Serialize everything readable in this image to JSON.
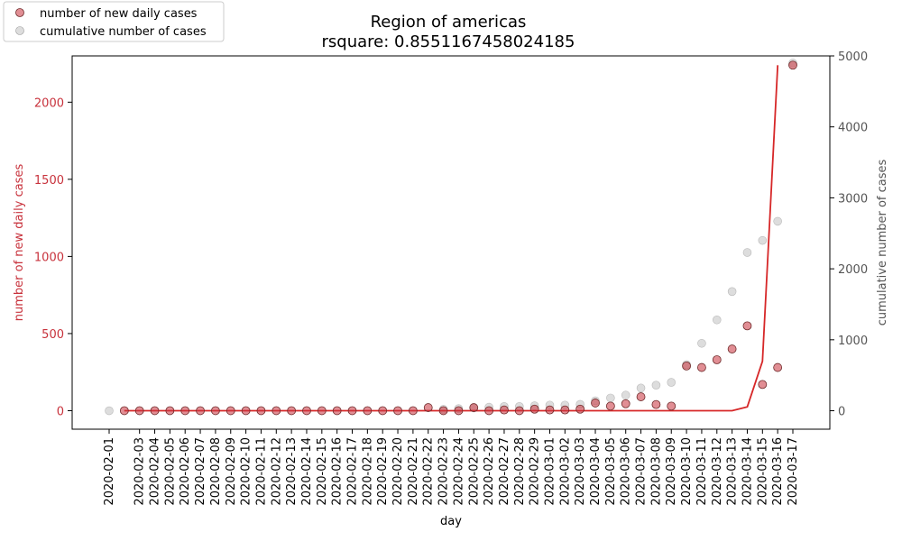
{
  "chart_data": {
    "type": "scatter",
    "title": "Region of americas",
    "subtitle": "rsquare: 0.8551167458024185",
    "xlabel": "day",
    "ylabel_left": "number of new daily cases",
    "ylabel_right": "cumulative number of cases",
    "ylim_left": [
      -120,
      2300
    ],
    "ylim_right": [
      -260,
      5000
    ],
    "yticks_left": [
      0,
      500,
      1000,
      1500,
      2000
    ],
    "yticks_right": [
      0,
      1000,
      2000,
      3000,
      4000,
      5000
    ],
    "legend_position": "top-left",
    "colors": {
      "daily": "#c8323c",
      "cumulative": "#b4b4b4",
      "fit_line": "#d62728",
      "left_axis_text": "#c8323c",
      "right_axis_text": "#555555"
    },
    "x": [
      "2020-02-01",
      "2020-02-02",
      "2020-02-03",
      "2020-02-04",
      "2020-02-05",
      "2020-02-06",
      "2020-02-07",
      "2020-02-08",
      "2020-02-09",
      "2020-02-10",
      "2020-02-11",
      "2020-02-12",
      "2020-02-13",
      "2020-02-14",
      "2020-02-15",
      "2020-02-16",
      "2020-02-17",
      "2020-02-18",
      "2020-02-19",
      "2020-02-20",
      "2020-02-21",
      "2020-02-22",
      "2020-02-23",
      "2020-02-24",
      "2020-02-25",
      "2020-02-26",
      "2020-02-27",
      "2020-02-28",
      "2020-02-29",
      "2020-03-01",
      "2020-03-02",
      "2020-03-03",
      "2020-03-04",
      "2020-03-05",
      "2020-03-06",
      "2020-03-07",
      "2020-03-08",
      "2020-03-09",
      "2020-03-10",
      "2020-03-11",
      "2020-03-12",
      "2020-03-13",
      "2020-03-14",
      "2020-03-15",
      "2020-03-16",
      "2020-03-17"
    ],
    "x_tick_labels": [
      "2020-02-01",
      "2020-02-03",
      "2020-02-04",
      "2020-02-05",
      "2020-02-06",
      "2020-02-07",
      "2020-02-08",
      "2020-02-09",
      "2020-02-10",
      "2020-02-11",
      "2020-02-12",
      "2020-02-13",
      "2020-02-14",
      "2020-02-15",
      "2020-02-16",
      "2020-02-17",
      "2020-02-18",
      "2020-02-19",
      "2020-02-20",
      "2020-02-21",
      "2020-02-22",
      "2020-02-23",
      "2020-02-24",
      "2020-02-25",
      "2020-02-26",
      "2020-02-27",
      "2020-02-28",
      "2020-02-29",
      "2020-03-01",
      "2020-03-02",
      "2020-03-03",
      "2020-03-04",
      "2020-03-05",
      "2020-03-06",
      "2020-03-07",
      "2020-03-08",
      "2020-03-09",
      "2020-03-10",
      "2020-03-11",
      "2020-03-12",
      "2020-03-13",
      "2020-03-14",
      "2020-03-15",
      "2020-03-16",
      "2020-03-17"
    ],
    "series": [
      {
        "name": "number of new daily cases",
        "axis": "left",
        "type": "scatter",
        "values": [
          null,
          0,
          0,
          0,
          0,
          0,
          0,
          0,
          0,
          0,
          0,
          0,
          0,
          0,
          0,
          0,
          0,
          0,
          0,
          0,
          0,
          20,
          0,
          0,
          20,
          0,
          5,
          0,
          10,
          5,
          5,
          10,
          50,
          30,
          45,
          90,
          40,
          30,
          290,
          280,
          330,
          400,
          550,
          170,
          280,
          2240
        ]
      },
      {
        "name": "cumulative number of cases",
        "axis": "right",
        "type": "scatter",
        "values": [
          0,
          null,
          null,
          null,
          null,
          null,
          null,
          null,
          null,
          null,
          null,
          null,
          null,
          null,
          null,
          null,
          null,
          null,
          null,
          null,
          null,
          null,
          20,
          30,
          40,
          50,
          60,
          60,
          70,
          80,
          80,
          90,
          140,
          180,
          220,
          320,
          360,
          400,
          650,
          950,
          1280,
          1680,
          2230,
          2400,
          2670,
          4900
        ]
      },
      {
        "axis": "left",
        "type": "line",
        "values": [
          null,
          0,
          0,
          0,
          0,
          0,
          0,
          0,
          0,
          0,
          0,
          0,
          0,
          0,
          0,
          0,
          0,
          0,
          0,
          0,
          0,
          0,
          0,
          0,
          0,
          0,
          0,
          0,
          0,
          0,
          0,
          0,
          0,
          0,
          0,
          0,
          0,
          0,
          0,
          0,
          0,
          0,
          25,
          320,
          2240,
          null
        ]
      }
    ]
  }
}
